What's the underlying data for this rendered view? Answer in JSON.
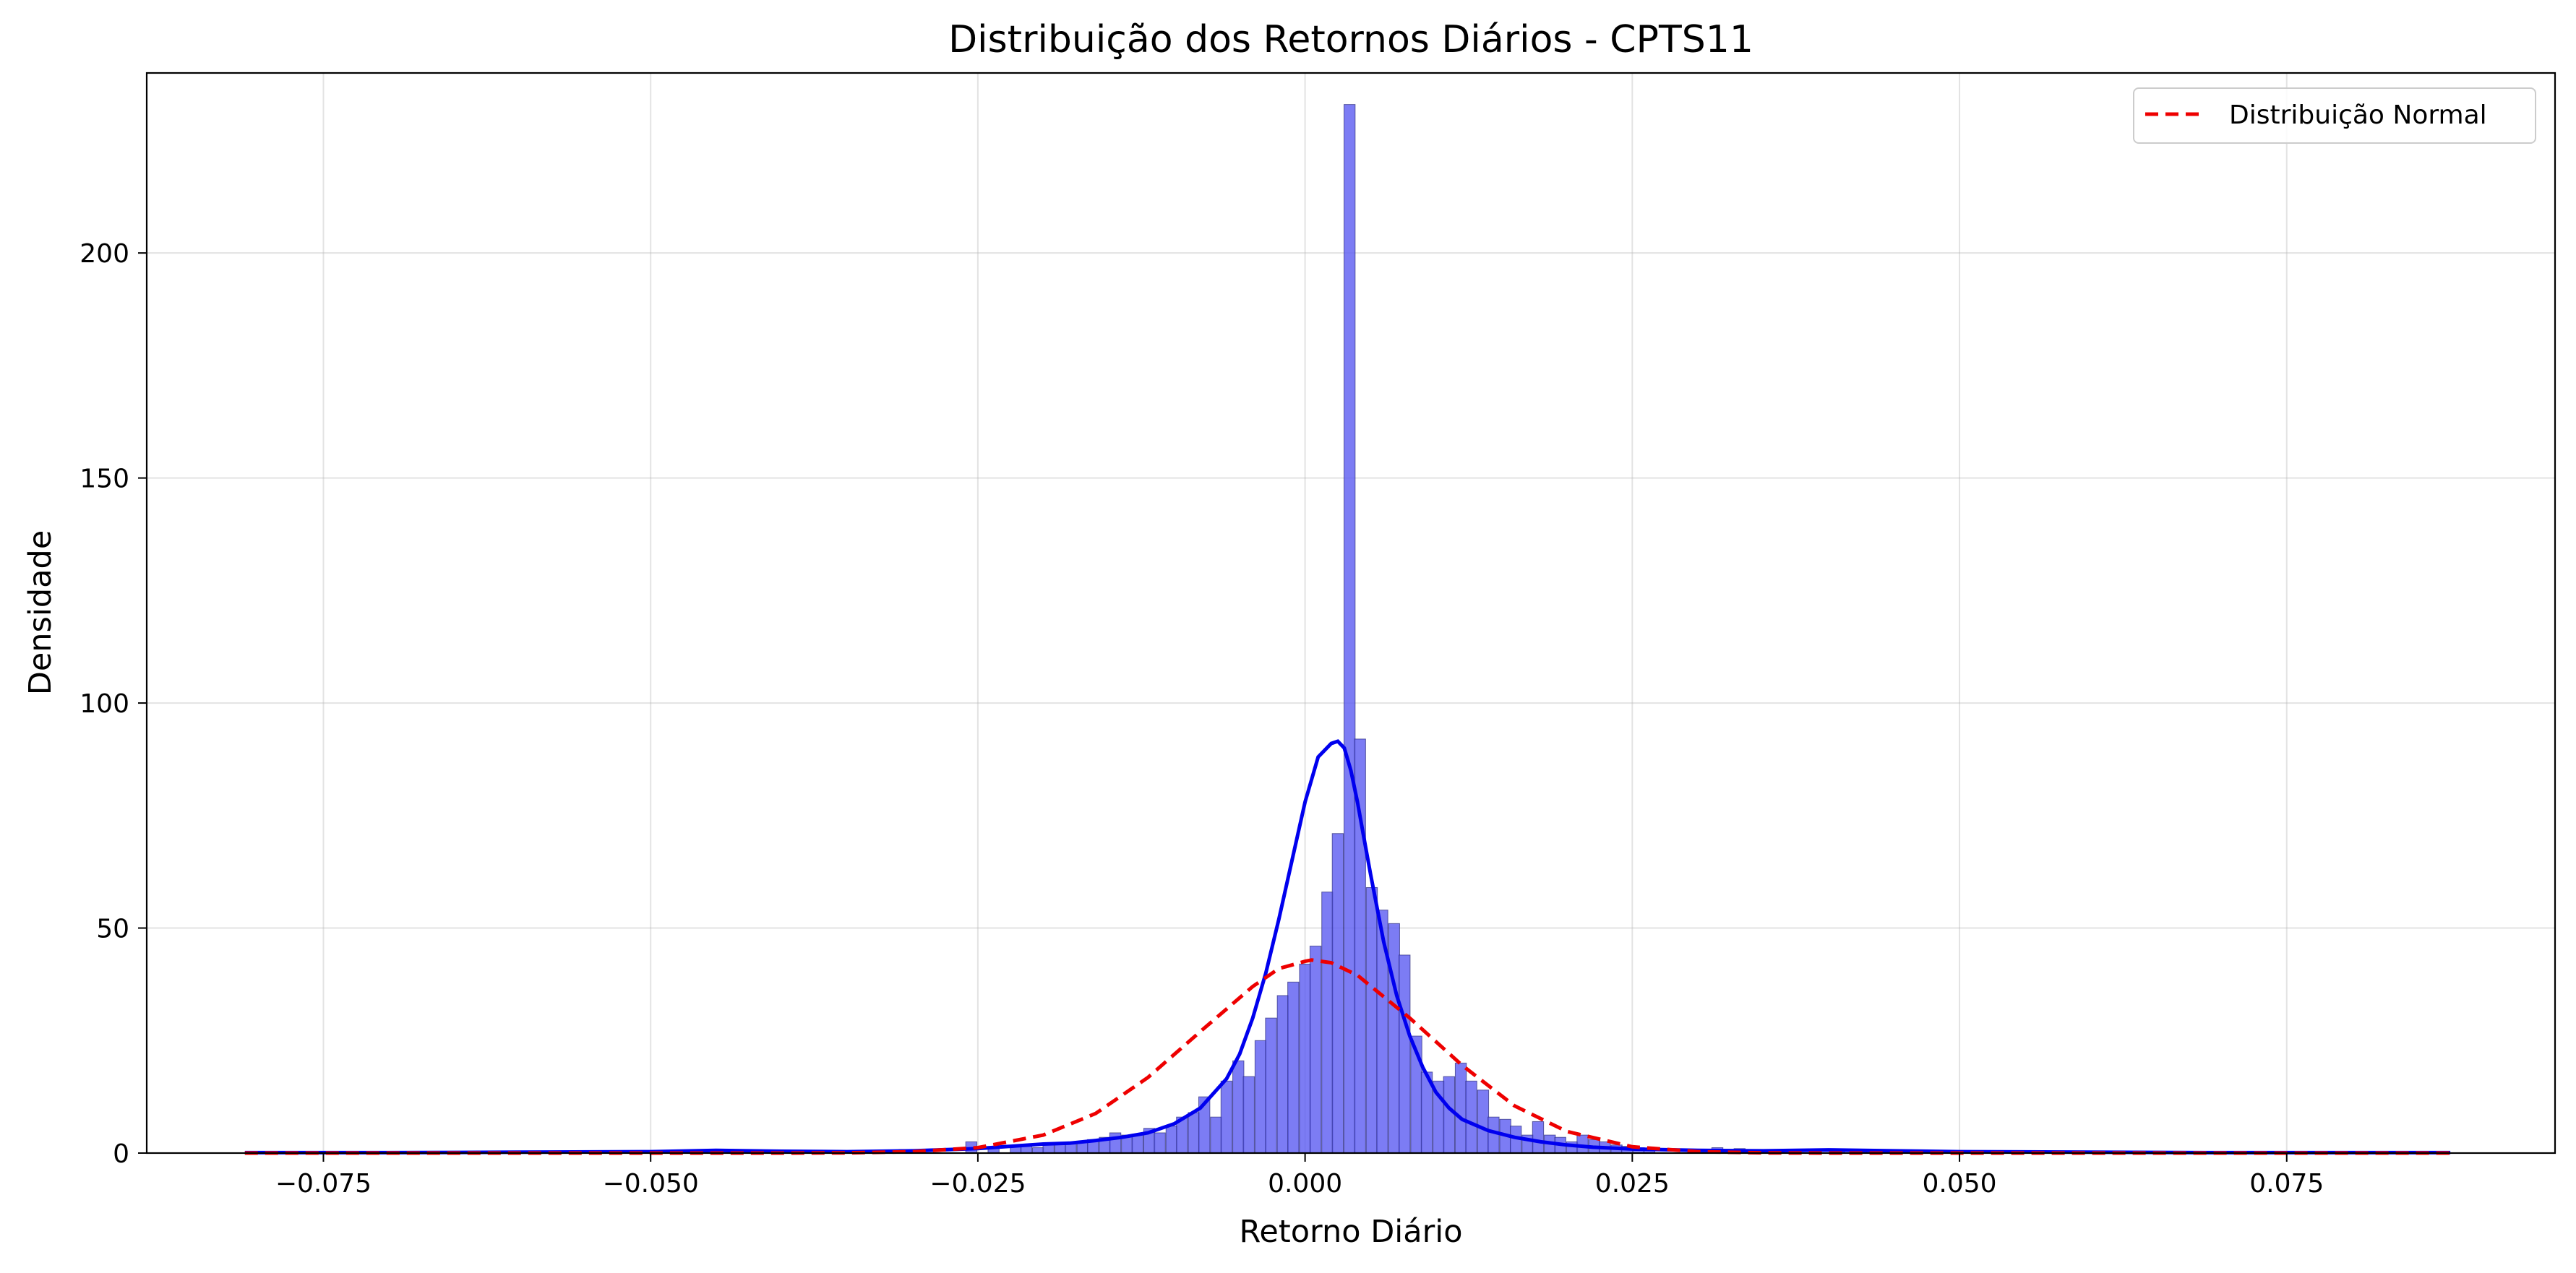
{
  "chart_data": {
    "type": "histogram",
    "title": "Distribuição dos Retornos Diários - CPTS11",
    "xlabel": "Retorno Diário",
    "ylabel": "Densidade",
    "xlim": [
      -0.0885,
      0.0955
    ],
    "ylim": [
      0,
      240
    ],
    "xticks": [
      -0.075,
      -0.05,
      -0.025,
      0.0,
      0.025,
      0.05,
      0.075
    ],
    "xtick_labels": [
      "−0.075",
      "−0.050",
      "−0.025",
      "0.000",
      "0.025",
      "0.050",
      "0.075"
    ],
    "yticks": [
      0,
      50,
      100,
      150,
      200
    ],
    "ytick_labels": [
      "0",
      "50",
      "100",
      "150",
      "200"
    ],
    "grid": true,
    "legend": {
      "placement": "top-right",
      "entries": [
        "Distribuição Normal"
      ]
    },
    "colors": {
      "histogram": "#5f5ff2",
      "kde": "#0000ee",
      "normal": "#ee0000"
    },
    "histogram": {
      "bin_width": 0.00085,
      "bins": [
        {
          "x": -0.0306,
          "density": 0.8
        },
        {
          "x": -0.0255,
          "density": 2.5
        },
        {
          "x": -0.0238,
          "density": 1.2
        },
        {
          "x": -0.0221,
          "density": 1.5
        },
        {
          "x": -0.0213,
          "density": 2.0
        },
        {
          "x": -0.0204,
          "density": 1.2
        },
        {
          "x": -0.0196,
          "density": 1.8
        },
        {
          "x": -0.0187,
          "density": 2.4
        },
        {
          "x": -0.0179,
          "density": 2.0
        },
        {
          "x": -0.017,
          "density": 2.6
        },
        {
          "x": -0.0162,
          "density": 3.0
        },
        {
          "x": -0.0153,
          "density": 3.5
        },
        {
          "x": -0.0145,
          "density": 4.5
        },
        {
          "x": -0.0136,
          "density": 4.0
        },
        {
          "x": -0.0128,
          "density": 4.2
        },
        {
          "x": -0.0119,
          "density": 5.5
        },
        {
          "x": -0.0111,
          "density": 4.5
        },
        {
          "x": -0.0102,
          "density": 6.0
        },
        {
          "x": -0.0094,
          "density": 8.0
        },
        {
          "x": -0.0085,
          "density": 9.0
        },
        {
          "x": -0.0077,
          "density": 12.5
        },
        {
          "x": -0.0068,
          "density": 8.0
        },
        {
          "x": -0.006,
          "density": 16.0
        },
        {
          "x": -0.0051,
          "density": 20.5
        },
        {
          "x": -0.0043,
          "density": 17.0
        },
        {
          "x": -0.0034,
          "density": 25.0
        },
        {
          "x": -0.0026,
          "density": 30.0
        },
        {
          "x": -0.0017,
          "density": 35.0
        },
        {
          "x": -0.0009,
          "density": 38.0
        },
        {
          "x": 0.0,
          "density": 42.0
        },
        {
          "x": 0.0008,
          "density": 46.0
        },
        {
          "x": 0.0017,
          "density": 58.0
        },
        {
          "x": 0.0025,
          "density": 71.0
        },
        {
          "x": 0.0034,
          "density": 233.0
        },
        {
          "x": 0.0042,
          "density": 92.0
        },
        {
          "x": 0.0051,
          "density": 59.0
        },
        {
          "x": 0.0059,
          "density": 54.0
        },
        {
          "x": 0.0068,
          "density": 51.0
        },
        {
          "x": 0.0076,
          "density": 44.0
        },
        {
          "x": 0.0085,
          "density": 26.0
        },
        {
          "x": 0.0093,
          "density": 18.0
        },
        {
          "x": 0.0102,
          "density": 16.0
        },
        {
          "x": 0.011,
          "density": 17.0
        },
        {
          "x": 0.0119,
          "density": 20.0
        },
        {
          "x": 0.0127,
          "density": 16.0
        },
        {
          "x": 0.0136,
          "density": 14.0
        },
        {
          "x": 0.0144,
          "density": 8.0
        },
        {
          "x": 0.0153,
          "density": 7.5
        },
        {
          "x": 0.0161,
          "density": 6.0
        },
        {
          "x": 0.017,
          "density": 4.0
        },
        {
          "x": 0.0178,
          "density": 7.0
        },
        {
          "x": 0.0187,
          "density": 4.0
        },
        {
          "x": 0.0195,
          "density": 3.5
        },
        {
          "x": 0.0204,
          "density": 2.5
        },
        {
          "x": 0.0212,
          "density": 4.0
        },
        {
          "x": 0.0221,
          "density": 3.0
        },
        {
          "x": 0.0229,
          "density": 2.5
        },
        {
          "x": 0.0238,
          "density": 1.8
        },
        {
          "x": 0.0246,
          "density": 1.5
        },
        {
          "x": 0.0255,
          "density": 1.2
        },
        {
          "x": 0.0263,
          "density": 1.0
        },
        {
          "x": 0.0306,
          "density": 0.8
        },
        {
          "x": 0.0315,
          "density": 1.2
        },
        {
          "x": 0.0323,
          "density": 0.8
        },
        {
          "x": 0.0332,
          "density": 1.0
        },
        {
          "x": 0.034,
          "density": 0.8
        },
        {
          "x": 0.0357,
          "density": 0.8
        },
        {
          "x": 0.0408,
          "density": 0.8
        },
        {
          "x": 0.0425,
          "density": 0.6
        }
      ]
    },
    "series": [
      {
        "name": "",
        "type": "line",
        "x": [
          -0.081,
          -0.07,
          -0.06,
          -0.05,
          -0.045,
          -0.04,
          -0.035,
          -0.03,
          -0.025,
          -0.022,
          -0.02,
          -0.018,
          -0.016,
          -0.014,
          -0.012,
          -0.01,
          -0.008,
          -0.006,
          -0.005,
          -0.004,
          -0.003,
          -0.002,
          -0.001,
          0.0,
          0.001,
          0.002,
          0.0025,
          0.003,
          0.0035,
          0.004,
          0.0045,
          0.005,
          0.006,
          0.007,
          0.008,
          0.009,
          0.01,
          0.011,
          0.012,
          0.014,
          0.016,
          0.018,
          0.02,
          0.022,
          0.025,
          0.03,
          0.035,
          0.04,
          0.045,
          0.05,
          0.06,
          0.07,
          0.08,
          0.0875
        ],
        "y": [
          0.1,
          0.1,
          0.2,
          0.3,
          0.6,
          0.4,
          0.3,
          0.5,
          1.0,
          1.6,
          2.0,
          2.2,
          2.8,
          3.5,
          4.5,
          6.5,
          10.0,
          16.5,
          22.0,
          30.0,
          40.0,
          52.0,
          65.0,
          78.0,
          88.0,
          91.0,
          91.5,
          90.0,
          85.0,
          78.0,
          70.0,
          62.0,
          47.0,
          35.0,
          26.0,
          19.0,
          13.5,
          10.0,
          7.5,
          5.0,
          3.5,
          2.5,
          1.8,
          1.3,
          0.9,
          0.6,
          0.5,
          0.7,
          0.5,
          0.3,
          0.2,
          0.1,
          0.1,
          0.1
        ]
      },
      {
        "name": "Distribuição Normal",
        "type": "line",
        "style": "dashed",
        "x": [
          -0.081,
          -0.07,
          -0.06,
          -0.05,
          -0.04,
          -0.035,
          -0.03,
          -0.025,
          -0.02,
          -0.016,
          -0.012,
          -0.008,
          -0.004,
          -0.002,
          0.0,
          0.0005,
          0.002,
          0.004,
          0.008,
          0.012,
          0.016,
          0.02,
          0.025,
          0.03,
          0.035,
          0.04,
          0.05,
          0.06,
          0.07,
          0.08,
          0.0875
        ],
        "y": [
          0.0,
          0.0,
          0.0,
          0.0,
          0.0,
          0.05,
          0.3,
          1.2,
          4.0,
          8.8,
          16.8,
          27.0,
          37.0,
          41.0,
          42.6,
          42.9,
          42.3,
          39.5,
          30.0,
          19.5,
          10.5,
          4.8,
          1.4,
          0.3,
          0.05,
          0.0,
          0.0,
          0.0,
          0.0,
          0.0,
          0.0
        ]
      }
    ]
  }
}
